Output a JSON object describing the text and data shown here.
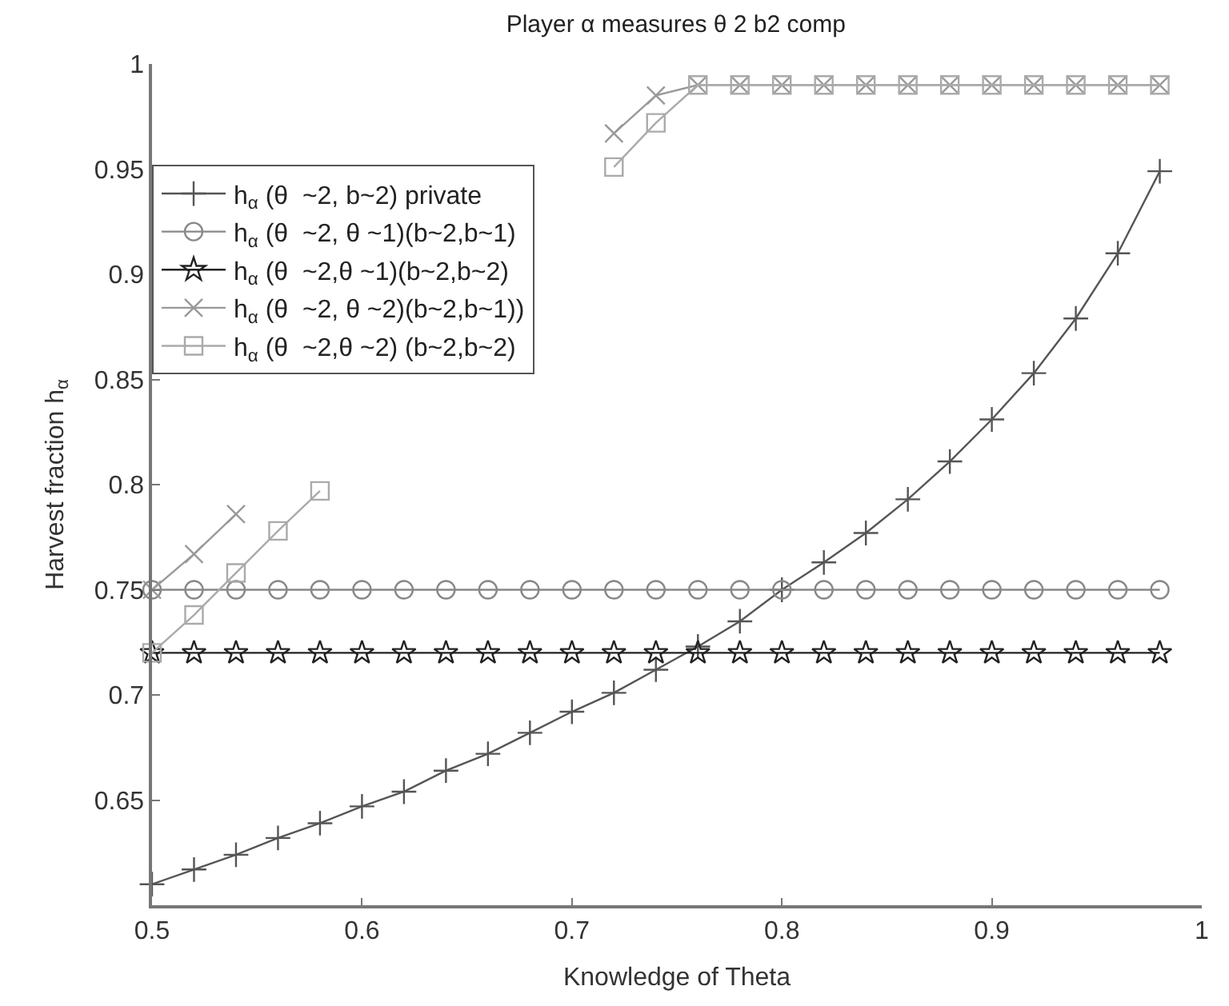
{
  "chart_data": {
    "type": "line",
    "title": "Player α measures θ 2 b2 comp",
    "xlabel": "Knowledge of Theta",
    "ylabel": "Harvest fraction h$_{α}$",
    "x": [
      0.5,
      0.52,
      0.54,
      0.56,
      0.58,
      0.6,
      0.62,
      0.64,
      0.66,
      0.68,
      0.7,
      0.72,
      0.74,
      0.76,
      0.78,
      0.8,
      0.82,
      0.84,
      0.86,
      0.88,
      0.9,
      0.92,
      0.94,
      0.96,
      0.98
    ],
    "series": [
      {
        "name": "h$_{α}$ (θ  ~2, b~2) private",
        "color": "#555555",
        "marker": "cross",
        "values": [
          0.61,
          0.617,
          0.624,
          0.632,
          0.639,
          0.647,
          0.654,
          0.664,
          0.672,
          0.682,
          0.692,
          0.701,
          0.712,
          0.723,
          0.735,
          0.75,
          0.763,
          0.777,
          0.793,
          0.811,
          0.831,
          0.853,
          0.879,
          0.91,
          0.949
        ]
      },
      {
        "name": "h$_{α}$ (θ  ~2, θ ~1)(b~2,b~1)",
        "color": "#888888",
        "marker": "circle",
        "values": [
          0.75,
          0.75,
          0.75,
          0.75,
          0.75,
          0.75,
          0.75,
          0.75,
          0.75,
          0.75,
          0.75,
          0.75,
          0.75,
          0.75,
          0.75,
          0.75,
          0.75,
          0.75,
          0.75,
          0.75,
          0.75,
          0.75,
          0.75,
          0.75,
          0.75
        ]
      },
      {
        "name": "h$_{α}$ (θ  ~2,θ ~1)(b~2,b~2)",
        "color": "#222222",
        "marker": "star",
        "values": [
          0.72,
          0.72,
          0.72,
          0.72,
          0.72,
          0.72,
          0.72,
          0.72,
          0.72,
          0.72,
          0.72,
          0.72,
          0.72,
          0.72,
          0.72,
          0.72,
          0.72,
          0.72,
          0.72,
          0.72,
          0.72,
          0.72,
          0.72,
          0.72,
          0.72
        ]
      },
      {
        "name": "h$_{α}$ (θ  ~2, θ ~2)(b~2,b~1))",
        "color": "#999999",
        "marker": "x",
        "values": [
          0.75,
          0.767,
          0.786,
          null,
          null,
          null,
          null,
          null,
          null,
          null,
          null,
          0.967,
          0.985,
          0.99,
          0.99,
          0.99,
          0.99,
          0.99,
          0.99,
          0.99,
          0.99,
          0.99,
          0.99,
          0.99,
          0.99
        ]
      },
      {
        "name": "h$_{α}$ (θ  ~2,θ ~2) (b~2,b~2)",
        "color": "#aaaaaa",
        "marker": "square",
        "values": [
          0.72,
          0.738,
          0.758,
          0.778,
          0.797,
          null,
          null,
          null,
          null,
          null,
          null,
          0.951,
          0.972,
          0.99,
          0.99,
          0.99,
          0.99,
          0.99,
          0.99,
          0.99,
          0.99,
          0.99,
          0.99,
          0.99,
          0.99
        ]
      }
    ],
    "xlim": [
      0.5,
      1
    ],
    "xticks": [
      0.5,
      0.6,
      0.7,
      0.8,
      0.9,
      1
    ],
    "ylim": [
      0.6,
      1
    ],
    "yticks": [
      0.65,
      0.7,
      0.75,
      0.8,
      0.85,
      0.9,
      0.95,
      1
    ],
    "legend": "top left"
  }
}
